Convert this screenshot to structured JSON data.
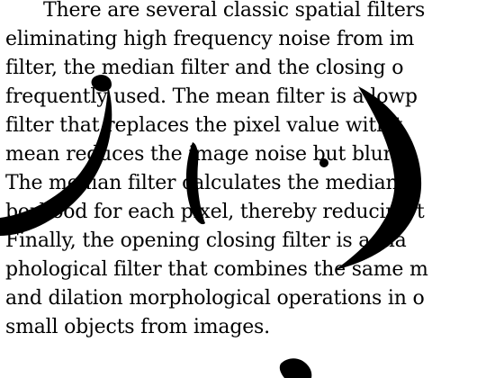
{
  "document": {
    "lines": [
      "There are several classic spatial filters",
      "eliminating high frequency noise from im",
      "filter, the median filter and the closing o",
      "frequently used. The mean filter is a lowp",
      "filter that replaces the pixel value with t",
      "mean reduces the image noise but blurs",
      "The median filter calculates the median o",
      "borhood for each pixel, thereby reducing t",
      "Finally, the opening closing filter is a ma",
      "phological filter that combines the same m",
      "and dilation morphological operations in o",
      "small objects from images."
    ]
  },
  "colors": {
    "ink": "#000000",
    "paper": "#ffffff"
  }
}
